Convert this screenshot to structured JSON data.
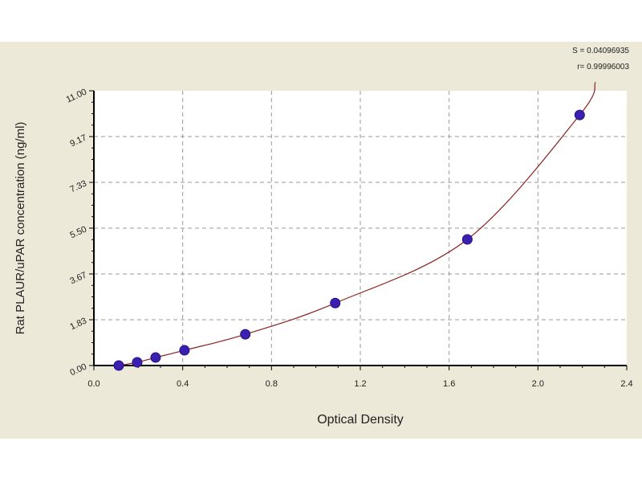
{
  "chart_data": {
    "type": "scatter",
    "title": "",
    "xlabel": "Optical Density",
    "ylabel": "Rat PLAUR/uPAR concentration (ng/ml)",
    "xlim": [
      0,
      2.4
    ],
    "ylim": [
      0,
      11.0
    ],
    "x_ticks": [
      "0.0",
      "0.4",
      "0.8",
      "1.2",
      "1.6",
      "2.0",
      "2.4"
    ],
    "y_ticks": [
      "0.00",
      "1.83",
      "3.67",
      "5.50",
      "7.33",
      "9.17",
      "11.00"
    ],
    "grid": true,
    "fit_curve": true,
    "stats": [
      "S = 0.04096935",
      "r= 0.99996003"
    ],
    "points": {
      "x": [
        0.112,
        0.195,
        0.278,
        0.408,
        0.682,
        1.087,
        1.682,
        2.188
      ],
      "y": [
        0.0,
        0.13,
        0.32,
        0.61,
        1.25,
        2.5,
        5.05,
        10.03
      ]
    },
    "colors": {
      "background": "#ece9d8",
      "plot": "#ffffff",
      "points": "#3a1fb0",
      "curve": "#8b2020",
      "grid": "#9a9a9a"
    }
  }
}
